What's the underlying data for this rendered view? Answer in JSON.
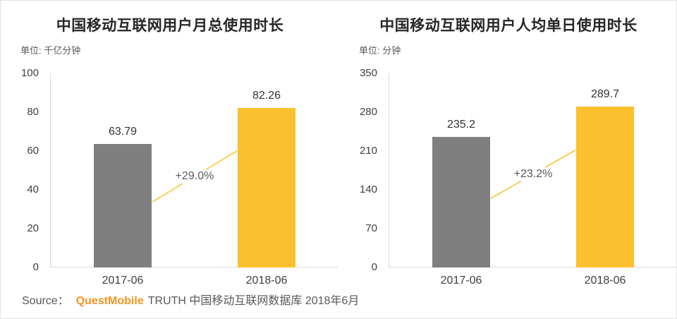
{
  "source": {
    "prefix": "Source：",
    "brand": "QuestMobile",
    "suffix": "TRUTH 中国移动互联网数据库 2018年6月"
  },
  "colors": {
    "bar_gray": "#7F7F7F",
    "bar_yellow": "#FBC02D",
    "connector_line": "#FBC02D",
    "axis_line": "#D9D9D9",
    "brand_orange": "#F7941D",
    "title_text": "#262626",
    "tick_text": "#404040",
    "value_text": "#333333",
    "percent_text": "#595959",
    "unit_text": "#595959",
    "source_text": "#595959"
  },
  "chart_data": [
    {
      "type": "bar",
      "title": "中国移动互联网用户月总使用时长",
      "unit_label": "单位: 千亿分钟",
      "categories": [
        "2017-06",
        "2018-06"
      ],
      "values": [
        63.79,
        82.26
      ],
      "value_labels": [
        "63.79",
        "82.26"
      ],
      "growth_label": "+29.0%",
      "ylim": [
        0,
        100
      ],
      "yticks": [
        0,
        20,
        40,
        60,
        80,
        100
      ],
      "bar_colors": [
        "#7F7F7F",
        "#FBC02D"
      ],
      "grid": false,
      "legend": false
    },
    {
      "type": "bar",
      "title": "中国移动互联网用户人均单日使用时长",
      "unit_label": "单位: 分钟",
      "categories": [
        "2017-06",
        "2018-06"
      ],
      "values": [
        235.2,
        289.7
      ],
      "value_labels": [
        "235.2",
        "289.7"
      ],
      "growth_label": "+23.2%",
      "ylim": [
        0,
        350
      ],
      "yticks": [
        0,
        70,
        140,
        210,
        280,
        350
      ],
      "bar_colors": [
        "#7F7F7F",
        "#FBC02D"
      ],
      "grid": false,
      "legend": false
    }
  ]
}
